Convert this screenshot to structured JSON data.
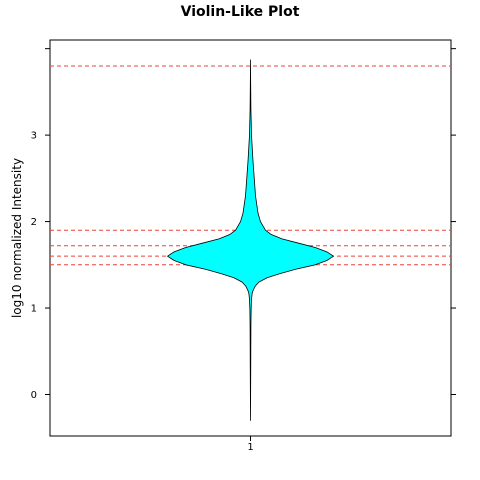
{
  "chart_data": {
    "type": "violin",
    "title": "Violin-Like Plot",
    "xlabel": "",
    "ylabel": "log10 normalized Intensity",
    "categories": [
      "1"
    ],
    "ylim": [
      -0.48,
      4.1
    ],
    "y_ticks": [
      0,
      1,
      2,
      3
    ],
    "grid": false,
    "legend": "none",
    "reference_lines": [
      3.8,
      1.9,
      1.72,
      1.6,
      1.5
    ],
    "violin": {
      "category": "1",
      "max_half_width": 1,
      "profile": [
        {
          "y": -0.3,
          "w": 0.0
        },
        {
          "y": 0.3,
          "w": 0.003
        },
        {
          "y": 0.8,
          "w": 0.005
        },
        {
          "y": 1.0,
          "w": 0.008
        },
        {
          "y": 1.1,
          "w": 0.012
        },
        {
          "y": 1.17,
          "w": 0.02
        },
        {
          "y": 1.2,
          "w": 0.03
        },
        {
          "y": 1.25,
          "w": 0.055
        },
        {
          "y": 1.3,
          "w": 0.1
        },
        {
          "y": 1.35,
          "w": 0.2
        },
        {
          "y": 1.4,
          "w": 0.36
        },
        {
          "y": 1.45,
          "w": 0.55
        },
        {
          "y": 1.5,
          "w": 0.78
        },
        {
          "y": 1.55,
          "w": 0.92
        },
        {
          "y": 1.6,
          "w": 1.0
        },
        {
          "y": 1.65,
          "w": 0.92
        },
        {
          "y": 1.7,
          "w": 0.78
        },
        {
          "y": 1.75,
          "w": 0.58
        },
        {
          "y": 1.8,
          "w": 0.38
        },
        {
          "y": 1.85,
          "w": 0.25
        },
        {
          "y": 1.9,
          "w": 0.18
        },
        {
          "y": 2.0,
          "w": 0.12
        },
        {
          "y": 2.1,
          "w": 0.09
        },
        {
          "y": 2.3,
          "w": 0.06
        },
        {
          "y": 2.5,
          "w": 0.045
        },
        {
          "y": 2.7,
          "w": 0.03
        },
        {
          "y": 3.0,
          "w": 0.012
        },
        {
          "y": 3.3,
          "w": 0.005
        },
        {
          "y": 3.6,
          "w": 0.002
        },
        {
          "y": 3.87,
          "w": 0.0
        }
      ]
    },
    "colors": {
      "fill": "#00FFFF",
      "outline": "#000000",
      "reference_line": "#E8443A",
      "frame": "#000000",
      "background": "#FFFFFF"
    }
  }
}
